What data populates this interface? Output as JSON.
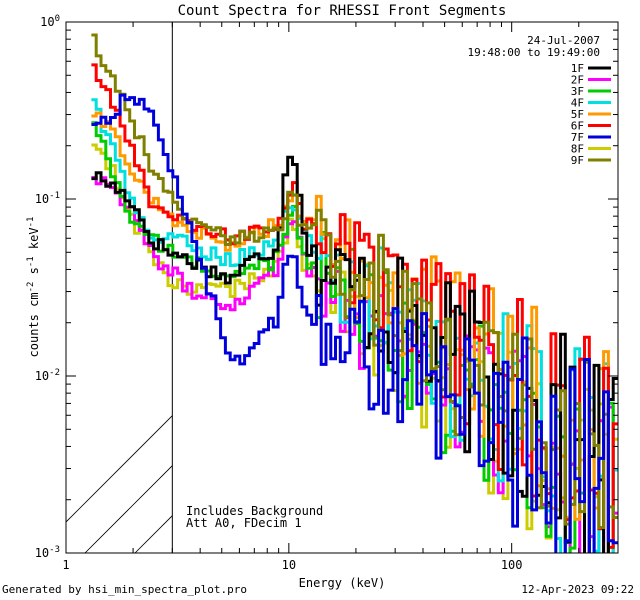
{
  "chart_data": {
    "type": "line",
    "title": "Count Spectra for RHESSI Front Segments",
    "xlabel": "Energy (keV)",
    "ylabel_parts": [
      "counts cm",
      "-2",
      " s",
      "-1",
      " keV",
      "-1"
    ],
    "xscale": "log",
    "yscale": "log",
    "xlim": [
      1,
      300
    ],
    "ylim": [
      0.001,
      1
    ],
    "x_ticks": [
      {
        "value": 1,
        "label": "1"
      },
      {
        "value": 10,
        "label": "10"
      },
      {
        "value": 100,
        "label": "100"
      }
    ],
    "y_ticks": [
      {
        "value": 1,
        "base": "10",
        "exp": "0"
      },
      {
        "value": 0.1,
        "base": "10",
        "exp": "-1"
      },
      {
        "value": 0.01,
        "base": "10",
        "exp": "-2"
      },
      {
        "value": 0.001,
        "base": "10",
        "exp": "-3"
      }
    ],
    "legend_date": "24-Jul-2007",
    "legend_time": "19:48:00 to 19:49:00",
    "annotations": [
      "Includes Background",
      "Att A0, FDecim 1"
    ],
    "shaded_region": {
      "x_min": 1,
      "x_max": 3
    },
    "series": [
      {
        "name": "1F",
        "color": "#000000",
        "low": [
          0.14,
          0.12,
          0.1,
          0.06,
          0.05,
          0.045,
          0.04,
          0.035,
          0.045,
          0.05
        ],
        "peak": 0.19,
        "curve_end": 0.0025
      },
      {
        "name": "2F",
        "color": "#ff00ff",
        "low": [
          0.14,
          0.12,
          0.09,
          0.05,
          0.04,
          0.03,
          0.028,
          0.025,
          0.03,
          0.04
        ],
        "peak": 0.08,
        "curve_end": 0.0018
      },
      {
        "name": "3F",
        "color": "#00cc00",
        "low": [
          0.3,
          0.15,
          0.08,
          0.06,
          0.05,
          0.045,
          0.04,
          0.035,
          0.04,
          0.045
        ],
        "peak": 0.09,
        "curve_end": 0.0015
      },
      {
        "name": "4F",
        "color": "#00e0e0",
        "low": [
          0.4,
          0.2,
          0.1,
          0.06,
          0.06,
          0.055,
          0.05,
          0.045,
          0.05,
          0.055
        ],
        "peak": 0.1,
        "curve_end": 0.0022
      },
      {
        "name": "5F",
        "color": "#ff9900",
        "low": [
          0.3,
          0.25,
          0.15,
          0.1,
          0.08,
          0.07,
          0.06,
          0.055,
          0.06,
          0.07
        ],
        "peak": 0.11,
        "curve_end": 0.003
      },
      {
        "name": "6F",
        "color": "#ff0000",
        "low": [
          0.6,
          0.35,
          0.2,
          0.1,
          0.08,
          0.07,
          0.065,
          0.06,
          0.065,
          0.07
        ],
        "peak": 0.12,
        "curve_end": 0.0028
      },
      {
        "name": "7F",
        "color": "#0000dd",
        "low": [
          0.25,
          0.3,
          0.4,
          0.3,
          0.15,
          0.07,
          0.03,
          0.012,
          0.013,
          0.02
        ],
        "peak": 0.055,
        "curve_end": 0.0025
      },
      {
        "name": "8F",
        "color": "#cccc00",
        "low": [
          0.2,
          0.15,
          0.08,
          0.05,
          0.035,
          0.03,
          0.032,
          0.03,
          0.035,
          0.04
        ],
        "peak": 0.07,
        "curve_end": 0.0016
      },
      {
        "name": "9F",
        "color": "#808000",
        "low": [
          0.85,
          0.5,
          0.3,
          0.15,
          0.1,
          0.08,
          0.07,
          0.06,
          0.06,
          0.065
        ],
        "peak": 0.1,
        "curve_end": 0.0024
      }
    ]
  },
  "footer": {
    "left": "Generated by hsi_min_spectra_plot.pro",
    "right": "12-Apr-2023 09:22"
  }
}
